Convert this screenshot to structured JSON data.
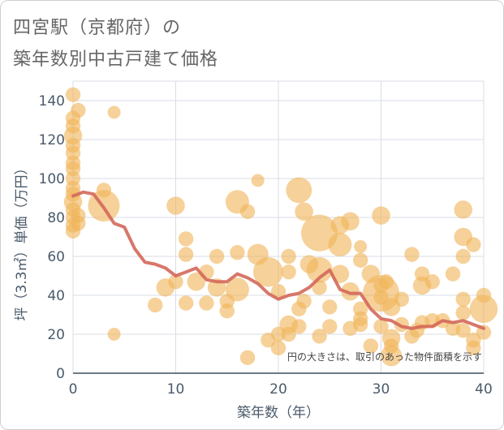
{
  "title_line1": "四宮駅（京都府）の",
  "title_line2": "築年数別中古戸建て価格",
  "chart_data": {
    "type": "scatter",
    "title": "四宮駅（京都府）の築年数別中古戸建て価格",
    "xlabel": "築年数（年）",
    "ylabel": "坪（3.3㎡）単価（万円）",
    "xlim": [
      0,
      40
    ],
    "ylim": [
      0,
      150
    ],
    "xticks": [
      0,
      10,
      20,
      30,
      40
    ],
    "yticks": [
      0,
      20,
      40,
      60,
      80,
      100,
      120,
      140
    ],
    "grid": true,
    "annotation": "円の大きさは、取引のあった物件面積を示す",
    "colors": {
      "bubble": "#f0b45a",
      "line": "#d4685a",
      "grid": "#d8dee6"
    },
    "scatter_points": [
      {
        "x": 0,
        "y": 143,
        "size": 2
      },
      {
        "x": 0,
        "y": 131,
        "size": 2
      },
      {
        "x": 0,
        "y": 127,
        "size": 2
      },
      {
        "x": 0,
        "y": 122,
        "size": 3
      },
      {
        "x": 0,
        "y": 117,
        "size": 2
      },
      {
        "x": 0,
        "y": 113,
        "size": 2
      },
      {
        "x": 0,
        "y": 108,
        "size": 2
      },
      {
        "x": 0,
        "y": 105,
        "size": 2
      },
      {
        "x": 0,
        "y": 100,
        "size": 2
      },
      {
        "x": 0,
        "y": 95,
        "size": 2
      },
      {
        "x": 0,
        "y": 92,
        "size": 2
      },
      {
        "x": 0,
        "y": 88,
        "size": 3
      },
      {
        "x": 0,
        "y": 84,
        "size": 2
      },
      {
        "x": 0,
        "y": 80,
        "size": 2
      },
      {
        "x": 0,
        "y": 76,
        "size": 2
      },
      {
        "x": 0,
        "y": 73,
        "size": 2
      },
      {
        "x": 0.5,
        "y": 135,
        "size": 2
      },
      {
        "x": 0.5,
        "y": 81,
        "size": 2
      },
      {
        "x": 0.5,
        "y": 77,
        "size": 2
      },
      {
        "x": 3,
        "y": 94,
        "size": 2
      },
      {
        "x": 3,
        "y": 86,
        "size": 9
      },
      {
        "x": 4,
        "y": 134,
        "size": 1.5
      },
      {
        "x": 4,
        "y": 20,
        "size": 1.5
      },
      {
        "x": 8,
        "y": 35,
        "size": 2
      },
      {
        "x": 9,
        "y": 44,
        "size": 3
      },
      {
        "x": 10,
        "y": 86,
        "size": 3
      },
      {
        "x": 10,
        "y": 47,
        "size": 2
      },
      {
        "x": 11,
        "y": 69,
        "size": 2
      },
      {
        "x": 11,
        "y": 61,
        "size": 2
      },
      {
        "x": 11,
        "y": 36,
        "size": 2
      },
      {
        "x": 12,
        "y": 47,
        "size": 3
      },
      {
        "x": 13,
        "y": 52,
        "size": 2
      },
      {
        "x": 13,
        "y": 36,
        "size": 2
      },
      {
        "x": 14,
        "y": 60,
        "size": 2
      },
      {
        "x": 14,
        "y": 44,
        "size": 3
      },
      {
        "x": 15,
        "y": 37,
        "size": 2
      },
      {
        "x": 15,
        "y": 32,
        "size": 2
      },
      {
        "x": 16,
        "y": 88,
        "size": 5
      },
      {
        "x": 16,
        "y": 62,
        "size": 2
      },
      {
        "x": 16,
        "y": 43,
        "size": 5
      },
      {
        "x": 17,
        "y": 83,
        "size": 2
      },
      {
        "x": 17,
        "y": 8,
        "size": 2
      },
      {
        "x": 18,
        "y": 99,
        "size": 1.5
      },
      {
        "x": 18,
        "y": 61,
        "size": 4
      },
      {
        "x": 19,
        "y": 52,
        "size": 8
      },
      {
        "x": 19,
        "y": 17,
        "size": 2
      },
      {
        "x": 20,
        "y": 20,
        "size": 2
      },
      {
        "x": 20,
        "y": 42,
        "size": 2
      },
      {
        "x": 20,
        "y": 13,
        "size": 2
      },
      {
        "x": 21,
        "y": 60,
        "size": 2
      },
      {
        "x": 21,
        "y": 52,
        "size": 2
      },
      {
        "x": 21,
        "y": 25,
        "size": 3
      },
      {
        "x": 21,
        "y": 20,
        "size": 2
      },
      {
        "x": 22,
        "y": 94,
        "size": 6
      },
      {
        "x": 22,
        "y": 33,
        "size": 2
      },
      {
        "x": 22,
        "y": 24,
        "size": 2
      },
      {
        "x": 22.5,
        "y": 83,
        "size": 3
      },
      {
        "x": 22.5,
        "y": 37,
        "size": 2
      },
      {
        "x": 23,
        "y": 56,
        "size": 3
      },
      {
        "x": 24,
        "y": 72,
        "size": 12
      },
      {
        "x": 24,
        "y": 53,
        "size": 6
      },
      {
        "x": 24,
        "y": 44,
        "size": 2
      },
      {
        "x": 24,
        "y": 19,
        "size": 2
      },
      {
        "x": 25,
        "y": 34,
        "size": 2
      },
      {
        "x": 25,
        "y": 24,
        "size": 2
      },
      {
        "x": 26,
        "y": 76,
        "size": 3
      },
      {
        "x": 26,
        "y": 66,
        "size": 5
      },
      {
        "x": 26,
        "y": 51,
        "size": 3
      },
      {
        "x": 27,
        "y": 78,
        "size": 3
      },
      {
        "x": 27,
        "y": 42,
        "size": 3
      },
      {
        "x": 27,
        "y": 23,
        "size": 2
      },
      {
        "x": 28,
        "y": 65,
        "size": 1.5
      },
      {
        "x": 28,
        "y": 58,
        "size": 2
      },
      {
        "x": 28,
        "y": 33,
        "size": 2
      },
      {
        "x": 28,
        "y": 28,
        "size": 2
      },
      {
        "x": 28,
        "y": 25,
        "size": 2
      },
      {
        "x": 29,
        "y": 51,
        "size": 3
      },
      {
        "x": 29,
        "y": 14,
        "size": 2
      },
      {
        "x": 30,
        "y": 81,
        "size": 3
      },
      {
        "x": 30,
        "y": 45,
        "size": 2
      },
      {
        "x": 30,
        "y": 41,
        "size": 12
      },
      {
        "x": 30,
        "y": 39,
        "size": 2
      },
      {
        "x": 30,
        "y": 24,
        "size": 2
      },
      {
        "x": 30.5,
        "y": 47,
        "size": 2
      },
      {
        "x": 31,
        "y": 34,
        "size": 3
      },
      {
        "x": 31,
        "y": 18,
        "size": 3
      },
      {
        "x": 31,
        "y": 14,
        "size": 2
      },
      {
        "x": 31,
        "y": 9,
        "size": 4
      },
      {
        "x": 32,
        "y": 38,
        "size": 2
      },
      {
        "x": 32,
        "y": 25,
        "size": 2
      },
      {
        "x": 33,
        "y": 61,
        "size": 2
      },
      {
        "x": 33,
        "y": 19,
        "size": 2
      },
      {
        "x": 33.5,
        "y": 22,
        "size": 2
      },
      {
        "x": 34,
        "y": 51,
        "size": 2
      },
      {
        "x": 34,
        "y": 45,
        "size": 3
      },
      {
        "x": 34,
        "y": 26,
        "size": 2
      },
      {
        "x": 35,
        "y": 47,
        "size": 2
      },
      {
        "x": 35,
        "y": 27,
        "size": 2
      },
      {
        "x": 36,
        "y": 27,
        "size": 2
      },
      {
        "x": 37,
        "y": 51,
        "size": 2
      },
      {
        "x": 37,
        "y": 23,
        "size": 2
      },
      {
        "x": 38,
        "y": 84,
        "size": 3
      },
      {
        "x": 38,
        "y": 70,
        "size": 3
      },
      {
        "x": 38,
        "y": 60,
        "size": 2
      },
      {
        "x": 38,
        "y": 38,
        "size": 2
      },
      {
        "x": 38,
        "y": 31,
        "size": 2
      },
      {
        "x": 38,
        "y": 22,
        "size": 2
      },
      {
        "x": 39,
        "y": 66,
        "size": 2
      },
      {
        "x": 39,
        "y": 17,
        "size": 2
      },
      {
        "x": 39,
        "y": 13,
        "size": 2
      },
      {
        "x": 40,
        "y": 40,
        "size": 2
      },
      {
        "x": 40,
        "y": 33,
        "size": 7
      },
      {
        "x": 40,
        "y": 21,
        "size": 2
      }
    ],
    "trend_line": {
      "x": [
        0,
        1,
        2,
        3,
        4,
        5,
        6,
        7,
        8,
        9,
        10,
        11,
        12,
        13,
        14,
        15,
        16,
        17,
        18,
        19,
        20,
        21,
        22,
        23,
        24,
        25,
        26,
        27,
        28,
        29,
        30,
        31,
        32,
        33,
        34,
        35,
        36,
        37,
        38,
        39,
        40
      ],
      "y": [
        91,
        93,
        92,
        85,
        77,
        75,
        64,
        57,
        56,
        54,
        50,
        52,
        54,
        48,
        47,
        47,
        51,
        49,
        46,
        41,
        38,
        40,
        41,
        44,
        49,
        53,
        43,
        41,
        41,
        33,
        28,
        27,
        24,
        23,
        24,
        24,
        27,
        26,
        27,
        25,
        23
      ]
    }
  }
}
